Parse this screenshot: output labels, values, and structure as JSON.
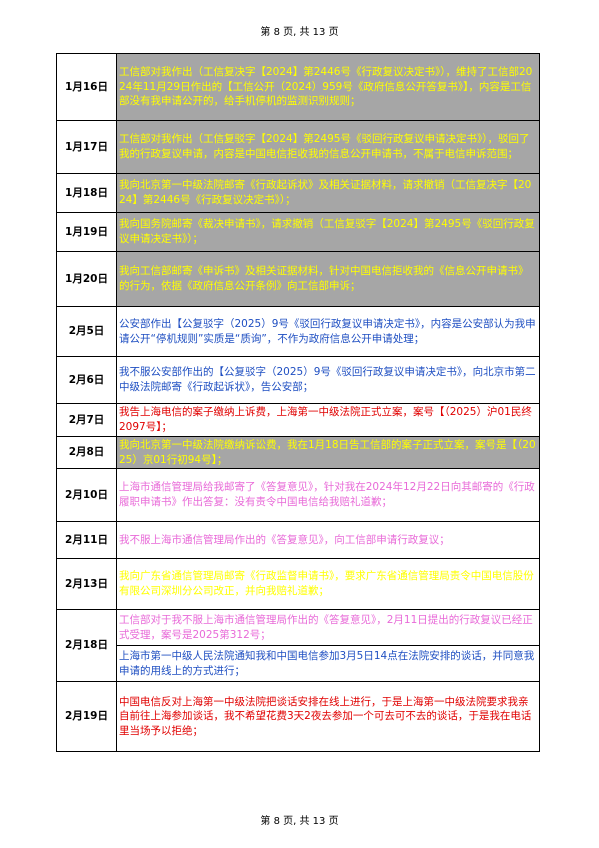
{
  "page": {
    "header": "第 8 页, 共 13 页",
    "footer": "第 8 页, 共 13 页"
  },
  "rows": [
    {
      "date": "1月16日",
      "text": "工信部对我作出（工信复决字【2024】第2446号《行政复议决定书》），维持了工信部2024年11月29日作出的【工信公开（2024）959号《政府信息公开答复书》】，内容是工信部没有我申请公开的，给手机停机的监测识别规则；"
    },
    {
      "date": "1月17日",
      "text": "工信部对我作出（工信复驳字【2024】第2495号《驳回行政复议申请决定书》），驳回了我的行政复议申请，内容是中国电信拒收我的信息公开申请书，不属于电信申诉范围；"
    },
    {
      "date": "1月18日",
      "text": "我向北京第一中级法院邮寄《行政起诉状》及相关证据材料，请求撤销（工信复决字【2024】第2446号《行政复议决定书》）；"
    },
    {
      "date": "1月19日",
      "text": "我向国务院邮寄《裁决申请书》，请求撤销（工信复驳字【2024】第2495号《驳回行政复议申请决定书》）；"
    },
    {
      "date": "1月20日",
      "text": "我向工信部邮寄《申诉书》及相关证据材料，针对中国电信拒收我的《信息公开申请书》的行为，依据《政府信息公开条例》向工信部申诉；"
    },
    {
      "date": "2月5日",
      "text": "公安部作出【公复驳字（2025）9号《驳回行政复议申请决定书》，内容是公安部认为我申请公开“停机规则”实质是“质询”，不作为政府信息公开申请处理；"
    },
    {
      "date": "2月6日",
      "text": "我不服公安部作出的【公复驳字（2025）9号《驳回行政复议申请决定书》，向北京市第二中级法院邮寄《行政起诉状》，告公安部；"
    },
    {
      "date": "2月7日",
      "text": "我告上海电信的案子缴纳上诉费，上海第一中级法院正式立案，案号【（2025）沪01民终2097号】；"
    },
    {
      "date": "2月8日",
      "text": "我向北京第一中级法院缴纳诉讼费，我在1月18日告工信部的案子正式立案，案号是【（2025）京01行初94号】；"
    },
    {
      "date": "2月10日",
      "text": "上海市通信管理局给我邮寄了《答复意见》，针对我在2024年12月22日向其邮寄的《行政履职申请书》作出答复：没有责令中国电信给我赔礼道歉；"
    },
    {
      "date": "2月11日",
      "text": "我不服上海市通信管理局作出的《答复意见》，向工信部申请行政复议；"
    },
    {
      "date": "2月13日",
      "text": "我向广东省通信管理局邮寄《行政监督申请书》，要求广东省通信管理局责令中国电信股份有限公司深圳分公司改正，并向我赔礼道歉；"
    },
    {
      "date": "2月18日",
      "text_a": "工信部对于我不服上海市通信管理局作出的《答复意见》，2月11日提出的行政复议已经正式受理，案号是2025第312号；",
      "text_b": "上海市第一中级人民法院通知我和中国电信参加3月5日14点在法院安排的谈话，并同意我申请的用线上的方式进行；"
    },
    {
      "date": "2月19日",
      "text": "中国电信反对上海第一中级法院把谈话安排在线上进行，于是上海第一中级法院要求我亲自前往上海参加谈话，我不希望花费3天2夜去参加一个可去可不去的谈话，于是我在电话里当场予以拒绝；"
    }
  ]
}
